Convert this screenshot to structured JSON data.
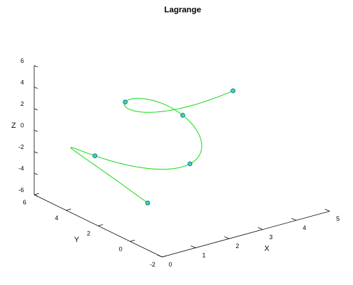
{
  "chart_data": {
    "type": "line",
    "projection": "3d",
    "title": "Lagrange",
    "xlabel": "X",
    "ylabel": "Y",
    "zlabel": "Z",
    "xlim": [
      0,
      5
    ],
    "ylim": [
      -2,
      6
    ],
    "zlim": [
      -6,
      6
    ],
    "x_ticks": [
      "0",
      "1",
      "2",
      "3",
      "4",
      "5"
    ],
    "y_ticks": [
      "-2",
      "0",
      "2",
      "4",
      "6"
    ],
    "z_ticks": [
      "-6",
      "-4",
      "-2",
      "0",
      "2",
      "4",
      "6"
    ],
    "grid": false,
    "legend": "none",
    "curve_color": "#22dd22",
    "marker_edge_color": "#1a7a6a",
    "marker_face_color": "#40d0d0",
    "series": [
      {
        "points": [
          {
            "x": 1,
            "y": 1,
            "z": -4
          },
          {
            "x": 1,
            "y": 4.3,
            "z": -2
          },
          {
            "x": 2.5,
            "y": 1.5,
            "z": -2
          },
          {
            "x": 3,
            "y": 3,
            "z": 1
          },
          {
            "x": 2,
            "y": 4.5,
            "z": 2
          },
          {
            "x": 4.5,
            "y": 3,
            "z": 2
          }
        ]
      }
    ]
  }
}
